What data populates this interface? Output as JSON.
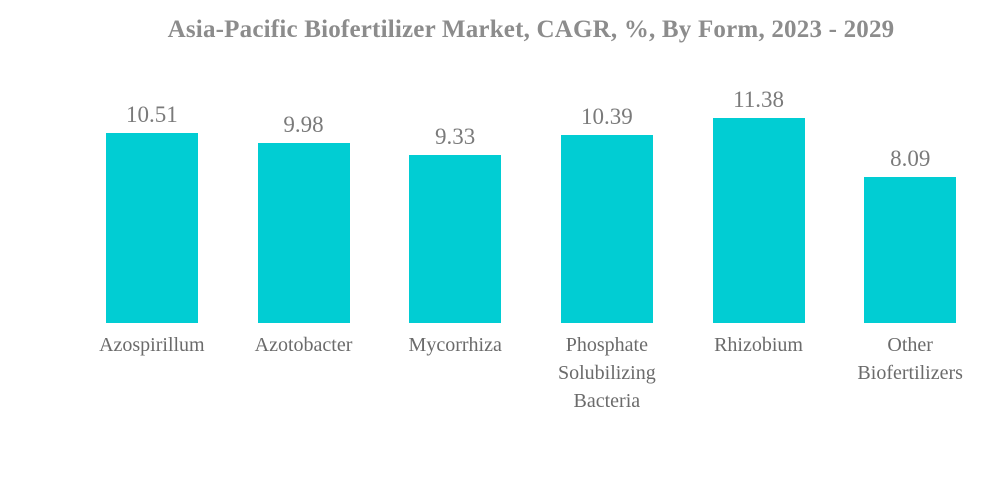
{
  "chart_data": {
    "type": "bar",
    "title": "Asia-Pacific Biofertilizer Market, CAGR, %, By Form, 2023 - 2029",
    "categories": [
      "Azospirillum",
      "Azotobacter",
      "Mycorrhiza",
      "Phosphate Solubilizing Bacteria",
      "Rhizobium",
      "Other Biofertilizers"
    ],
    "values": [
      10.51,
      9.98,
      9.33,
      10.39,
      11.38,
      8.09
    ],
    "value_labels": [
      "10.51",
      "9.98",
      "9.33",
      "10.39",
      "11.38",
      "8.09"
    ],
    "xlabel": "",
    "ylabel": "",
    "ylim": [
      0,
      12.7
    ],
    "grid": false,
    "legend": "none",
    "bar_color": "#01CDD3",
    "title_color": "#8c8c8c",
    "value_label_color": "#7a7a7a",
    "category_label_color": "#6b6b6b",
    "background_color": "#ffffff"
  }
}
